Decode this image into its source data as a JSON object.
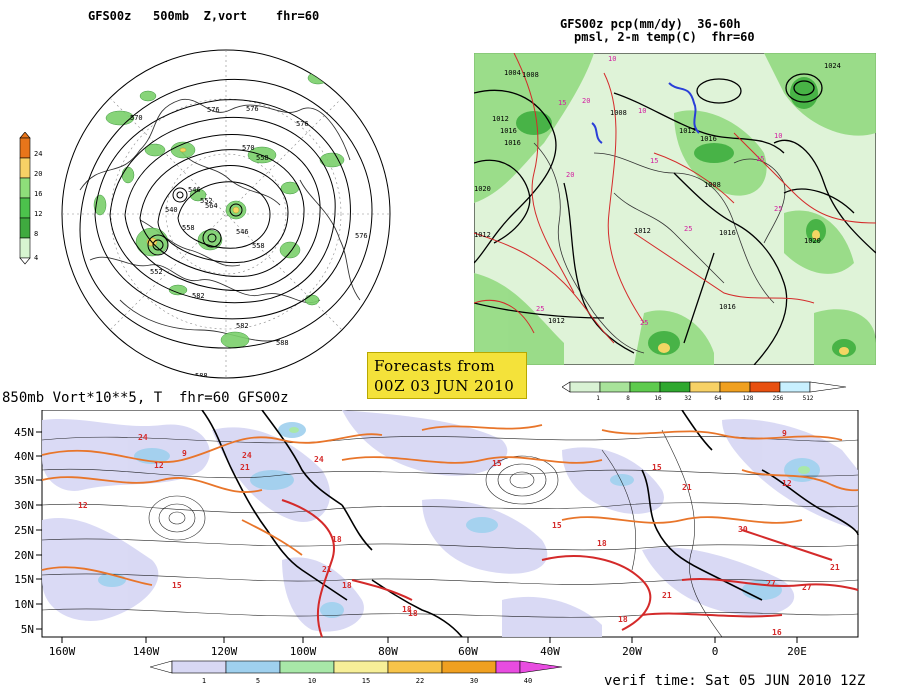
{
  "panel_top_left": {
    "title": "GFS00z   500mb  Z,vort    fhr=60",
    "legend_values": [
      "24",
      "20",
      "16",
      "12",
      "8",
      "4"
    ],
    "legend_colors": [
      "#e8751a",
      "#f7d166",
      "#8ede7a",
      "#4cc24c",
      "#3faa3f",
      "#d7f5d0"
    ],
    "contour_labels": [
      "582",
      "576",
      "570",
      "576",
      "570",
      "558",
      "546",
      "552",
      "540",
      "564",
      "558",
      "552",
      "546",
      "558",
      "576",
      "582",
      "588",
      "588",
      "576",
      "582"
    ]
  },
  "panel_top_right": {
    "title_line1": "GFS00z pcp(mm/dy)  36-60h",
    "title_line2": "pmsl, 2-m temp(C)  fhr=60",
    "legend_values": [
      "1",
      "8",
      "16",
      "32",
      "64",
      "128",
      "256",
      "512"
    ],
    "legend_colors": [
      "#d9f2d4",
      "#a8e39a",
      "#5ecb4e",
      "#2fa82f",
      "#f7d166",
      "#f0a020",
      "#e85010",
      "#c8f0ff"
    ],
    "isobar_labels": [
      "1004",
      "1008",
      "1012",
      "1016",
      "1016",
      "1020",
      "1012",
      "1008",
      "1012",
      "1016",
      "1024",
      "1020",
      "1012",
      "1016",
      "1008",
      "1012",
      "1016"
    ],
    "temp_labels": [
      "10",
      "15",
      "20",
      "25",
      "10",
      "15",
      "20",
      "25",
      "10",
      "15",
      "25",
      "25"
    ]
  },
  "banner": {
    "line1": "Forecasts from",
    "line2": "00Z 03 JUN 2010"
  },
  "panel_bottom": {
    "title": "850mb Vort*10**5, T  fhr=60 GFS00z",
    "lat_labels": [
      "45N",
      "40N",
      "35N",
      "30N",
      "25N",
      "20N",
      "15N",
      "10N",
      "5N"
    ],
    "lon_labels": [
      "160W",
      "140W",
      "120W",
      "100W",
      "80W",
      "60W",
      "40W",
      "20W",
      "0",
      "20E"
    ],
    "legend_values": [
      "1",
      "5",
      "10",
      "15",
      "22",
      "30",
      "40"
    ],
    "legend_colors": [
      "#d8d8f4",
      "#9fd0ee",
      "#a8e8a8",
      "#f7ef98",
      "#f7c44a",
      "#f0a020",
      "#e84ce0"
    ],
    "temp_labels": [
      "12",
      "15",
      "18",
      "21",
      "24",
      "21",
      "18",
      "15",
      "12",
      "9",
      "15",
      "18",
      "21",
      "24",
      "27",
      "30",
      "21",
      "18",
      "15",
      "12",
      "9",
      "16",
      "18",
      "21",
      "24",
      "27",
      "18"
    ],
    "verif_time": "verif time: Sat 05 JUN 2010 12Z"
  }
}
